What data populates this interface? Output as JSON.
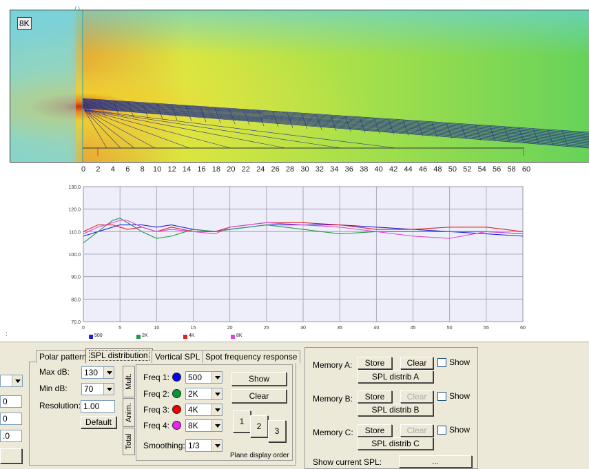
{
  "heatmap": {
    "badge": "8K",
    "x_ticks": [
      "0",
      "2",
      "4",
      "6",
      "8",
      "10",
      "12",
      "14",
      "16",
      "18",
      "20",
      "22",
      "24",
      "26",
      "28",
      "30",
      "32",
      "34",
      "36",
      "38",
      "40",
      "42",
      "44",
      "46",
      "48",
      "50",
      "52",
      "54",
      "56",
      "58",
      "60"
    ]
  },
  "chart_data": {
    "type": "line",
    "x": [
      0,
      2,
      4,
      5,
      6,
      8,
      10,
      12,
      15,
      18,
      20,
      25,
      30,
      35,
      40,
      45,
      50,
      55,
      60
    ],
    "xticks": [
      "0",
      "5",
      "10",
      "15",
      "20",
      "25",
      "30",
      "35",
      "40",
      "45",
      "50",
      "55",
      "60"
    ],
    "yticks": [
      "130.0",
      "120.0",
      "110.0",
      "100.0",
      "90.0",
      "80.0",
      "70.0"
    ],
    "xlim": [
      0,
      60
    ],
    "ylim": [
      70,
      130
    ],
    "grid": true,
    "series": [
      {
        "name": "500",
        "color": "#2222dd",
        "values": [
          108,
          110,
          112,
          113,
          113,
          113,
          112,
          113,
          111,
          110,
          111,
          113,
          113,
          113,
          112,
          111,
          110,
          109,
          108
        ]
      },
      {
        "name": "2K",
        "color": "#229944",
        "values": [
          105,
          110,
          115,
          116,
          114,
          110,
          107,
          108,
          111,
          110,
          111,
          113,
          111,
          109,
          110,
          110,
          110,
          110,
          109
        ]
      },
      {
        "name": "4K",
        "color": "#dd2222",
        "values": [
          110,
          113,
          113,
          112,
          111,
          112,
          110,
          112,
          110,
          110,
          112,
          114,
          114,
          113,
          111,
          111,
          112,
          112,
          110
        ]
      },
      {
        "name": "8K",
        "color": "#dd44dd",
        "values": [
          109,
          112,
          114,
          115,
          115,
          112,
          110,
          111,
          110,
          109,
          112,
          114,
          113,
          112,
          110,
          108,
          107,
          110,
          109
        ]
      }
    ]
  },
  "tabs": [
    "Polar pattern",
    "SPL distribution",
    "Vertical SPL",
    "Spot frequency response"
  ],
  "spl": {
    "max_db_label": "Max dB:",
    "max_db_value": "130",
    "min_db_label": "Min dB:",
    "min_db_value": "70",
    "resolution_label": "Resolution:",
    "resolution_value": "1.00",
    "default_button": "Default",
    "vtabs": [
      "Mult.",
      "Anim.",
      "Total"
    ],
    "freq1_label": "Freq 1:",
    "freq1_value": "500",
    "freq1_color": "#0000ee",
    "freq2_label": "Freq 2:",
    "freq2_value": "2K",
    "freq2_color": "#009933",
    "freq3_label": "Freq 3:",
    "freq3_value": "4K",
    "freq3_color": "#ee0000",
    "freq4_label": "Freq 4:",
    "freq4_value": "8K",
    "freq4_color": "#ee22ee",
    "smoothing_label": "Smoothing:",
    "smoothing_value": "1/3",
    "show_button": "Show",
    "clear_button": "Clear",
    "plane_buttons": [
      "1",
      "2",
      "3"
    ],
    "plane_display_order": "Plane display order"
  },
  "memory": {
    "a_label": "Memory A:",
    "b_label": "Memory B:",
    "c_label": "Memory C:",
    "store": "Store",
    "clear": "Clear",
    "show": "Show",
    "a_button": "SPL distrib A",
    "b_button": "SPL distrib B",
    "c_button": "SPL distrib C",
    "show_current_label": "Show current SPL:",
    "show_current_button": "..."
  },
  "left_partial": {
    "inputs": [
      "0",
      "0",
      ".0"
    ]
  }
}
